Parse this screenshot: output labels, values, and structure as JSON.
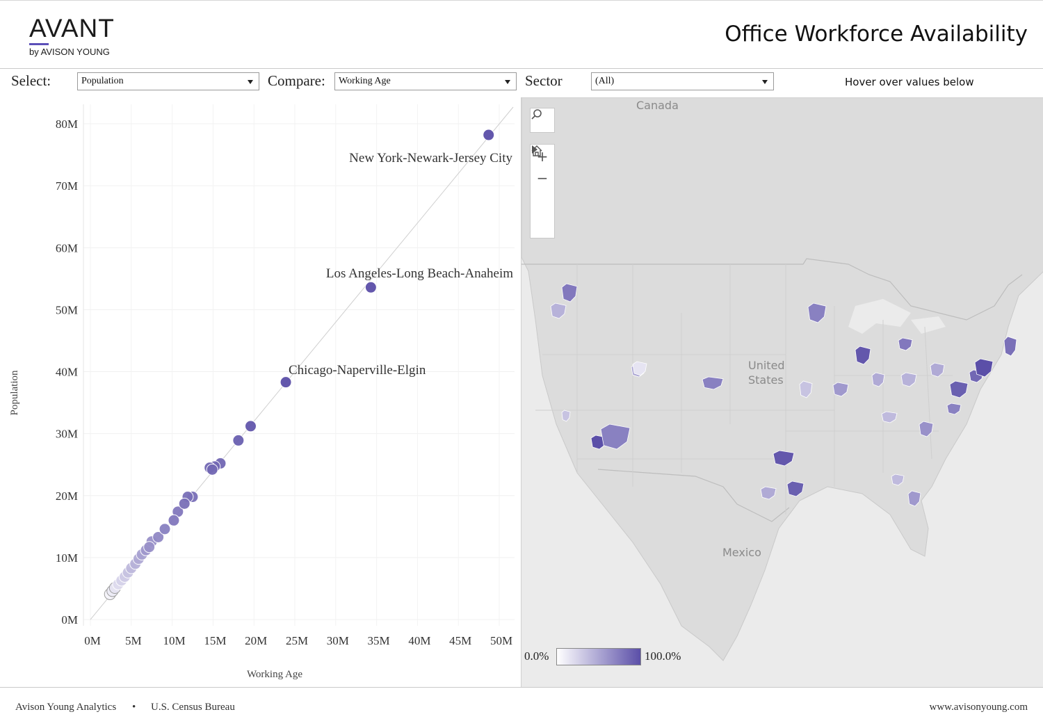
{
  "brand": {
    "name": "AVANT",
    "byline": "by AVISON YOUNG"
  },
  "header": {
    "title": "Office Workforce Availability"
  },
  "filters": {
    "select_label": "Select:",
    "select_value": "Population",
    "compare_label": "Compare:",
    "compare_value": "Working Age",
    "sector_label": "Sector",
    "sector_value": "(All)",
    "hint": "Hover over values below"
  },
  "chart_data": {
    "type": "scatter",
    "xlabel": "Working Age",
    "ylabel": "Population",
    "xlim": [
      0,
      50
    ],
    "ylim": [
      0,
      80
    ],
    "x_ticks": [
      "0M",
      "5M",
      "10M",
      "15M",
      "20M",
      "25M",
      "30M",
      "35M",
      "40M",
      "45M",
      "50M"
    ],
    "y_ticks": [
      "0M",
      "10M",
      "20M",
      "30M",
      "40M",
      "50M",
      "60M",
      "70M",
      "80M"
    ],
    "reference_line": "diagonal",
    "annotations": [
      "New York-Newark-Jersey City",
      "Los Angeles-Long Beach-Anaheim",
      "Chicago-Naperville-Elgin"
    ],
    "points": [
      {
        "x": 48.7,
        "y": 78.2,
        "label": "New York-Newark-Jersey City",
        "shade": 1.0
      },
      {
        "x": 34.3,
        "y": 53.6,
        "label": "Los Angeles-Long Beach-Anaheim",
        "shade": 1.0
      },
      {
        "x": 23.9,
        "y": 38.3,
        "label": "Chicago-Naperville-Elgin",
        "shade": 1.0
      },
      {
        "x": 19.6,
        "y": 31.2,
        "shade": 0.95
      },
      {
        "x": 18.1,
        "y": 28.9,
        "shade": 0.9
      },
      {
        "x": 15.9,
        "y": 25.2,
        "shade": 0.85
      },
      {
        "x": 15.2,
        "y": 24.7,
        "shade": 0.85
      },
      {
        "x": 14.6,
        "y": 24.5,
        "shade": 0.85
      },
      {
        "x": 14.9,
        "y": 24.2,
        "shade": 0.85
      },
      {
        "x": 12.5,
        "y": 19.8,
        "shade": 0.8
      },
      {
        "x": 11.9,
        "y": 19.8,
        "shade": 0.8
      },
      {
        "x": 11.5,
        "y": 18.7,
        "shade": 0.8
      },
      {
        "x": 10.7,
        "y": 17.4,
        "shade": 0.75
      },
      {
        "x": 10.2,
        "y": 16.0,
        "shade": 0.75
      },
      {
        "x": 9.1,
        "y": 14.6,
        "shade": 0.7
      },
      {
        "x": 8.3,
        "y": 13.3,
        "shade": 0.65
      },
      {
        "x": 7.5,
        "y": 12.6,
        "shade": 0.6
      },
      {
        "x": 7.2,
        "y": 11.7,
        "shade": 0.6
      },
      {
        "x": 6.8,
        "y": 11.2,
        "shade": 0.55
      },
      {
        "x": 6.3,
        "y": 10.5,
        "shade": 0.5
      },
      {
        "x": 5.9,
        "y": 9.8,
        "shade": 0.45
      },
      {
        "x": 5.5,
        "y": 9.0,
        "shade": 0.4
      },
      {
        "x": 5.0,
        "y": 8.3,
        "shade": 0.35
      },
      {
        "x": 4.6,
        "y": 7.6,
        "shade": 0.3
      },
      {
        "x": 4.2,
        "y": 6.9,
        "shade": 0.25
      },
      {
        "x": 3.8,
        "y": 6.3,
        "shade": 0.2
      },
      {
        "x": 3.4,
        "y": 5.7,
        "shade": 0.15
      },
      {
        "x": 3.0,
        "y": 5.1,
        "shade": 0.1
      },
      {
        "x": 2.7,
        "y": 4.6,
        "shade": 0.05
      },
      {
        "x": 2.4,
        "y": 4.1,
        "shade": 0.0
      }
    ]
  },
  "map": {
    "labels": [
      "Canada",
      "United States",
      "Mexico"
    ],
    "legend": {
      "min": "0.0%",
      "max": "100.0%"
    },
    "colors": {
      "land": "#dcdcdc",
      "water": "#ebebeb",
      "accent": "#5b4fa8",
      "light": "#ffffff"
    },
    "regions": [
      {
        "name": "Seattle",
        "shade": 0.75
      },
      {
        "name": "Portland",
        "shade": 0.4
      },
      {
        "name": "Bay Area",
        "shade": 0.3
      },
      {
        "name": "Los Angeles",
        "shade": 1.0
      },
      {
        "name": "Inland Empire",
        "shade": 0.7
      },
      {
        "name": "Las Vegas",
        "shade": 0.5
      },
      {
        "name": "Salt Lake City",
        "shade": 0.1
      },
      {
        "name": "Denver",
        "shade": 0.7
      },
      {
        "name": "Dallas",
        "shade": 0.95
      },
      {
        "name": "Houston",
        "shade": 0.9
      },
      {
        "name": "Austin",
        "shade": 0.45
      },
      {
        "name": "Minneapolis",
        "shade": 0.7
      },
      {
        "name": "Chicago",
        "shade": 0.95
      },
      {
        "name": "Detroit",
        "shade": 0.75
      },
      {
        "name": "Kansas City",
        "shade": 0.3
      },
      {
        "name": "St. Louis",
        "shade": 0.55
      },
      {
        "name": "Indianapolis",
        "shade": 0.45
      },
      {
        "name": "Columbus",
        "shade": 0.4
      },
      {
        "name": "Pittsburgh",
        "shade": 0.45
      },
      {
        "name": "Atlanta",
        "shade": 0.6
      },
      {
        "name": "Charlotte",
        "shade": 0.7
      },
      {
        "name": "Nashville",
        "shade": 0.35
      },
      {
        "name": "Washington DC",
        "shade": 0.9
      },
      {
        "name": "Philadelphia",
        "shade": 0.85
      },
      {
        "name": "New York",
        "shade": 1.0
      },
      {
        "name": "Boston",
        "shade": 0.8
      },
      {
        "name": "Miami",
        "shade": 0.55
      },
      {
        "name": "Tampa",
        "shade": 0.35
      }
    ]
  },
  "footer": {
    "source1": "Avison Young Analytics",
    "separator": "•",
    "source2": "U.S. Census Bureau",
    "site": "www.avisonyoung.com"
  }
}
